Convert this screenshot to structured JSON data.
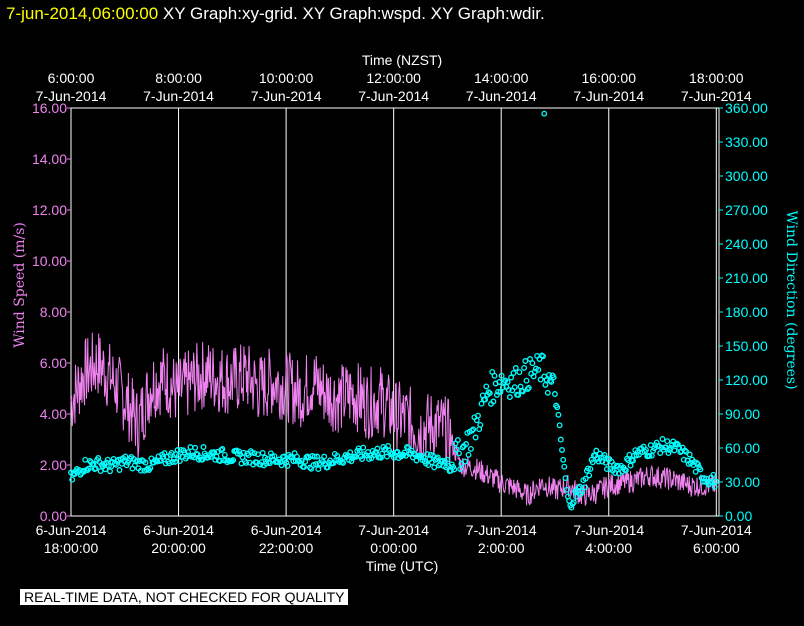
{
  "header": {
    "timestamp": "7-jun-2014,06:00:00",
    "graphs": [
      "XY Graph:xy-grid.",
      "XY Graph:wspd.",
      "XY Graph:wdir."
    ]
  },
  "disclaimer": "REAL-TIME DATA, NOT CHECKED FOR QUALITY",
  "colors": {
    "background": "#000000",
    "grid": "#ffffff",
    "wind_speed": "#ee82ee",
    "wind_direction": "#00ffff",
    "title": "#ffff00"
  },
  "chart_data": {
    "type": "line",
    "top_axis": {
      "label": "Time (NZST)",
      "ticks": [
        {
          "time": "6:00:00",
          "date": "7-Jun-2014"
        },
        {
          "time": "8:00:00",
          "date": "7-Jun-2014"
        },
        {
          "time": "10:00:00",
          "date": "7-Jun-2014"
        },
        {
          "time": "12:00:00",
          "date": "7-Jun-2014"
        },
        {
          "time": "14:00:00",
          "date": "7-Jun-2014"
        },
        {
          "time": "16:00:00",
          "date": "7-Jun-2014"
        },
        {
          "time": "18:00:00",
          "date": "7-Jun-2014"
        }
      ]
    },
    "bottom_axis": {
      "label": "Time (UTC)",
      "ticks": [
        {
          "date": "6-Jun-2014",
          "time": "18:00:00"
        },
        {
          "date": "6-Jun-2014",
          "time": "20:00:00"
        },
        {
          "date": "6-Jun-2014",
          "time": "22:00:00"
        },
        {
          "date": "7-Jun-2014",
          "time": "0:00:00"
        },
        {
          "date": "7-Jun-2014",
          "time": "2:00:00"
        },
        {
          "date": "7-Jun-2014",
          "time": "4:00:00"
        },
        {
          "date": "7-Jun-2014",
          "time": "6:00:00"
        }
      ]
    },
    "xlim_utc_hours_from": "6-Jun-2014 18:00:00",
    "xlim": [
      0,
      12.05
    ],
    "left_axis": {
      "label": "Wind Speed (m/s)",
      "ylim": [
        0,
        16
      ],
      "ticks": [
        "0.00",
        "2.00",
        "4.00",
        "6.00",
        "8.00",
        "10.00",
        "12.00",
        "14.00",
        "16.00"
      ]
    },
    "right_axis": {
      "label": "Wind Direction (degrees)",
      "ylim": [
        0,
        360
      ],
      "ticks": [
        "0.00",
        "30.00",
        "60.00",
        "90.00",
        "120.00",
        "150.00",
        "180.00",
        "210.00",
        "240.00",
        "270.00",
        "300.00",
        "330.00",
        "360.00"
      ]
    },
    "grid": true,
    "series": [
      {
        "name": "Wind Speed (m/s)",
        "style": "line",
        "x": [
          0,
          0.25,
          0.5,
          0.75,
          1,
          1.25,
          1.5,
          1.75,
          2,
          2.25,
          2.5,
          2.75,
          3,
          3.25,
          3.5,
          3.75,
          4,
          4.25,
          4.5,
          4.75,
          5,
          5.25,
          5.5,
          5.75,
          6,
          6.25,
          6.5,
          6.75,
          7,
          7.25,
          7.5,
          7.75,
          8,
          8.25,
          8.5,
          8.75,
          9,
          9.25,
          9.5,
          9.75,
          10,
          10.25,
          10.5,
          10.75,
          11,
          11.25,
          11.5,
          11.75,
          12
        ],
        "values": [
          4.5,
          5.6,
          6.0,
          5.4,
          4.6,
          3.6,
          5.2,
          5.4,
          4.8,
          5.3,
          5.6,
          5.4,
          5.3,
          5.5,
          5.0,
          5.3,
          5.1,
          4.8,
          5.3,
          4.8,
          4.6,
          4.8,
          4.4,
          4.6,
          4.0,
          3.8,
          3.4,
          3.6,
          3.3,
          2.0,
          1.9,
          1.6,
          1.3,
          1.1,
          0.8,
          1.3,
          1.0,
          1.2,
          0.8,
          0.9,
          1.2,
          1.3,
          1.4,
          1.6,
          1.5,
          1.4,
          1.2,
          1.2,
          1.2
        ]
      },
      {
        "name": "Wind Direction (degrees)",
        "style": "markers",
        "x": [
          0,
          0.25,
          0.5,
          0.75,
          1,
          1.25,
          1.5,
          1.75,
          2,
          2.25,
          2.5,
          2.75,
          3,
          3.25,
          3.5,
          3.75,
          4,
          4.25,
          4.5,
          4.75,
          5,
          5.25,
          5.5,
          5.75,
          6,
          6.25,
          6.5,
          6.75,
          7,
          7.25,
          7.5,
          7.75,
          8,
          8.25,
          8.5,
          8.75,
          9,
          9.25,
          9.5,
          9.75,
          10,
          10.25,
          10.5,
          10.75,
          11,
          11.25,
          11.5,
          11.75,
          12
        ],
        "values": [
          33,
          45,
          46,
          44,
          48,
          46,
          45,
          50,
          54,
          56,
          55,
          54,
          52,
          52,
          51,
          50,
          50,
          50,
          47,
          48,
          51,
          53,
          55,
          56,
          56,
          55,
          53,
          47,
          48,
          55,
          75,
          110,
          120,
          118,
          125,
          130,
          110,
          10,
          25,
          55,
          45,
          42,
          55,
          58,
          62,
          60,
          50,
          35,
          30
        ]
      }
    ],
    "outliers": [
      {
        "series": "Wind Direction (degrees)",
        "x": 8.8,
        "value": 355
      }
    ]
  }
}
